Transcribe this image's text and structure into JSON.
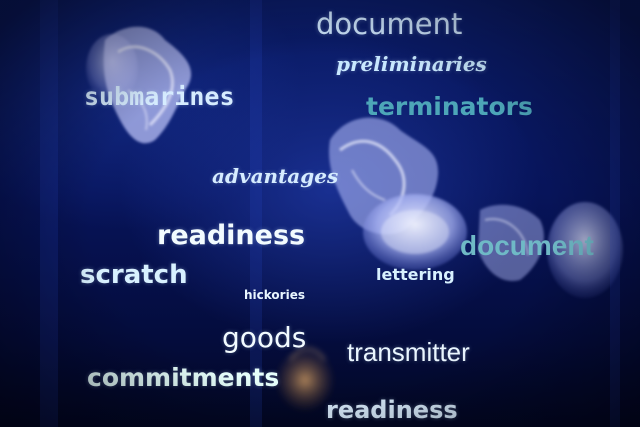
{
  "words": {
    "w1": {
      "text": "document",
      "color": "#cfe7ff"
    },
    "w2": {
      "text": "preliminaries",
      "color": "#c8e8ff"
    },
    "w3": {
      "text": "submarines",
      "color": "#d6ecff"
    },
    "w4": {
      "text": "terminators",
      "color": "#4da6b8"
    },
    "w5": {
      "text": "advantages",
      "color": "#d6ecff"
    },
    "w6": {
      "text": "readiness",
      "color": "#f2fbff"
    },
    "w7": {
      "text": "document",
      "color": "#6fb9c6"
    },
    "w8": {
      "text": "scratch",
      "color": "#d8f1ff"
    },
    "w9": {
      "text": "lettering",
      "color": "#d8f1ff"
    },
    "w10": {
      "text": "hickories",
      "color": "#e9f6ff"
    },
    "w11": {
      "text": "goods",
      "color": "#f2fbff"
    },
    "w12": {
      "text": "transmitter",
      "color": "#eaf6ff"
    },
    "w13": {
      "text": "commitments",
      "color": "#e6fffb"
    },
    "w14": {
      "text": "readiness",
      "color": "#dcefff"
    }
  },
  "background": {
    "subject": "jellyfish-in-deep-blue-water",
    "colors": {
      "water_top": "#0b1d6a",
      "water_bottom": "#020722",
      "jelly": "#b9c3ff",
      "jelly_amber": "#d79a4e"
    }
  }
}
